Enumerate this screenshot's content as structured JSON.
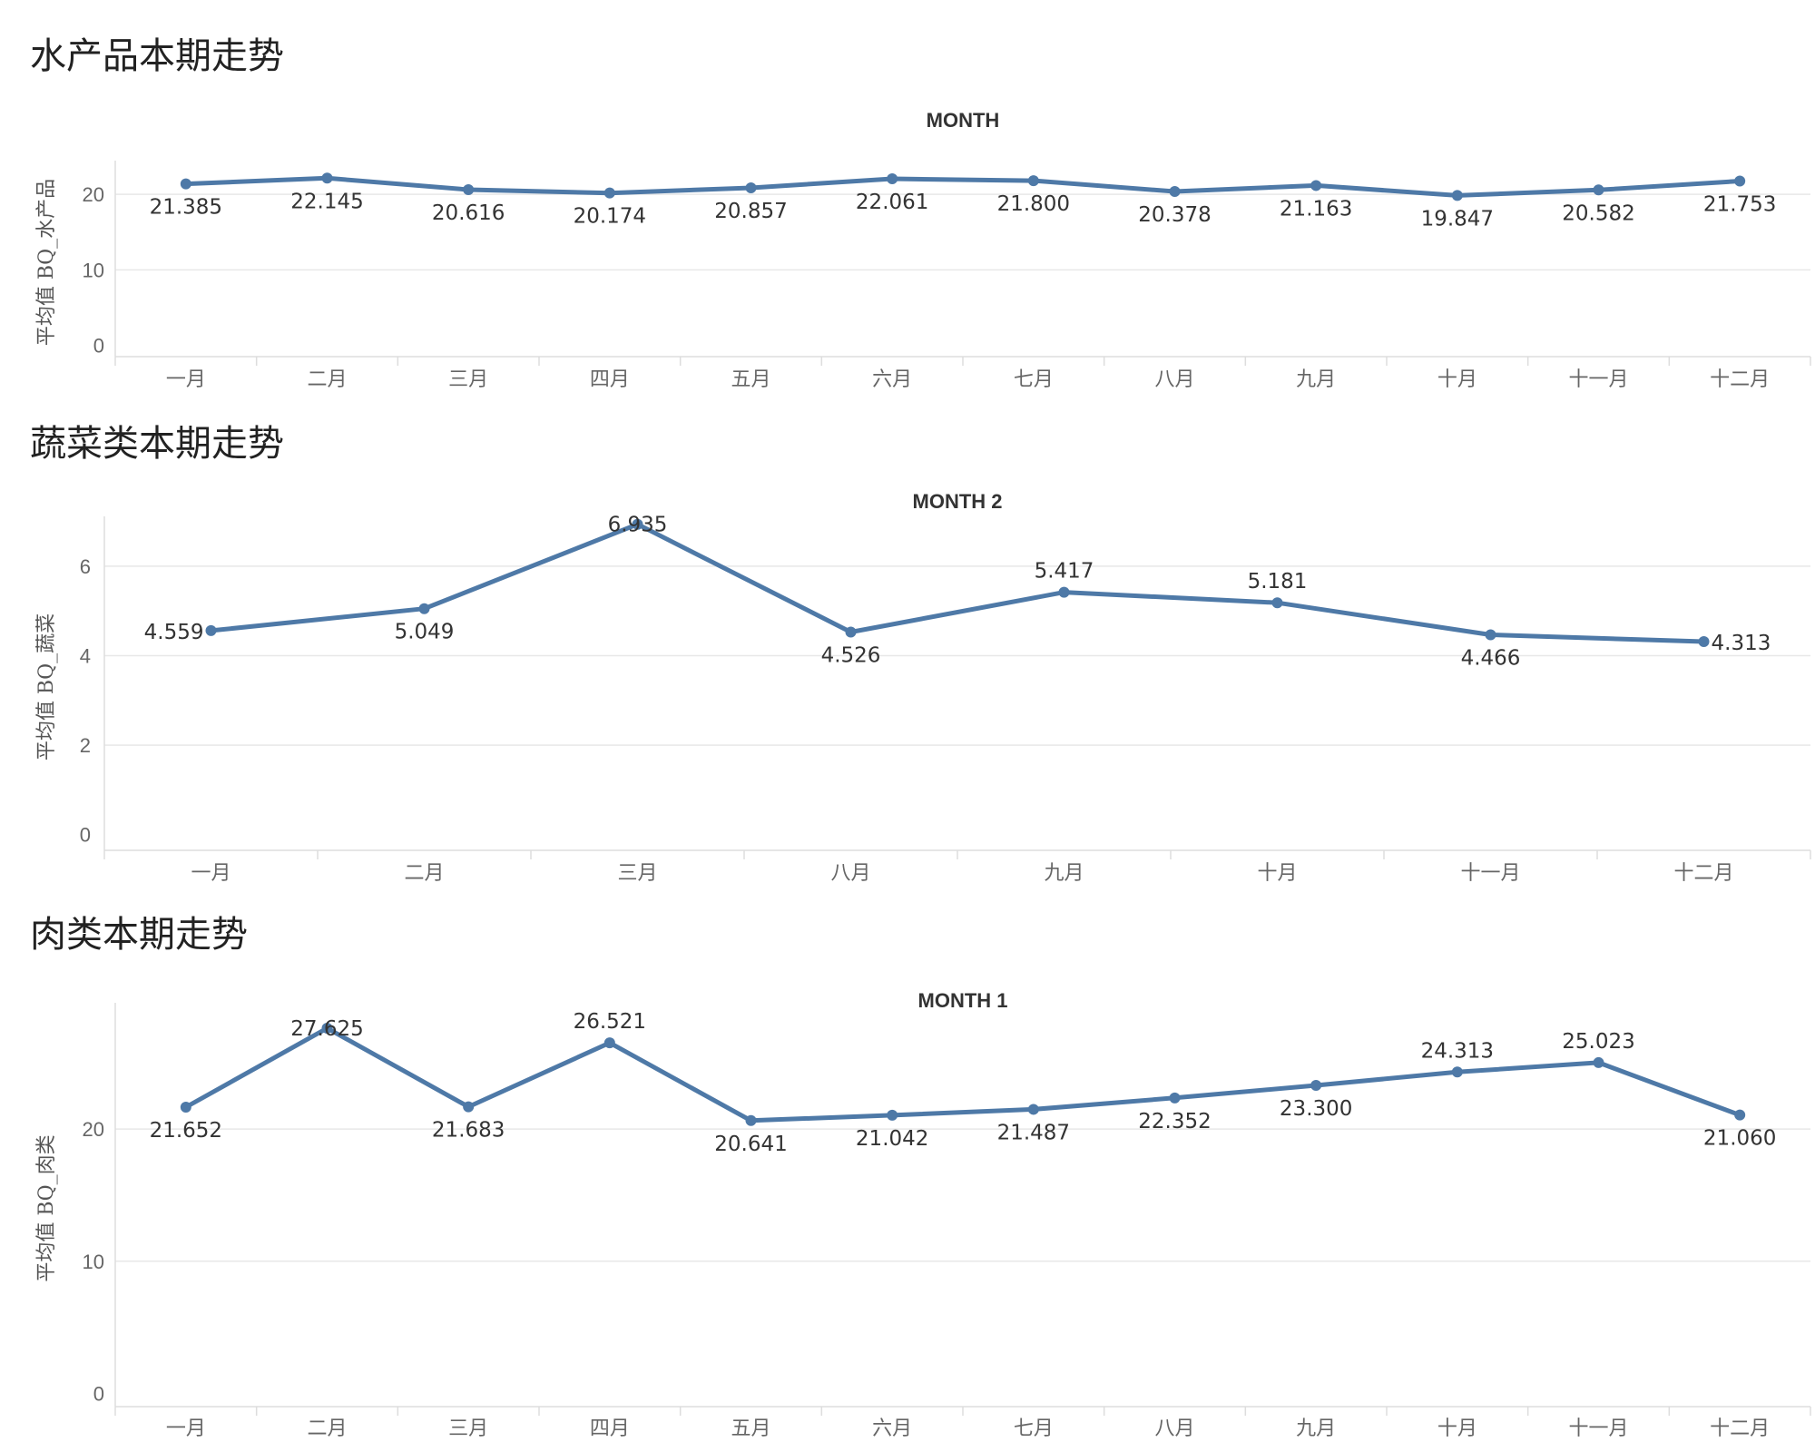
{
  "palette": {
    "line": "#4e79a7"
  },
  "chart_data": [
    {
      "type": "line",
      "panel_title": "水产品本期走势",
      "title": "MONTH",
      "xlabel": "",
      "ylabel": "平均值 BQ_水产品",
      "categories": [
        "一月",
        "二月",
        "三月",
        "四月",
        "五月",
        "六月",
        "七月",
        "八月",
        "九月",
        "十月",
        "十一月",
        "十二月"
      ],
      "values": [
        21.385,
        22.145,
        20.616,
        20.174,
        20.857,
        22.061,
        21.8,
        20.378,
        21.163,
        19.847,
        20.582,
        21.753
      ],
      "data_labels": [
        "21.385",
        "22.145",
        "20.616",
        "20.174",
        "20.857",
        "22.061",
        "21.800",
        "20.378",
        "21.163",
        "19.847",
        "20.582",
        "21.753"
      ],
      "label_pos": [
        "below",
        "below",
        "below",
        "below",
        "below",
        "below",
        "below",
        "below",
        "below",
        "below",
        "below",
        "below"
      ],
      "yticks": [
        0,
        10,
        20
      ],
      "ylim": [
        -1.5,
        23.5
      ],
      "grid": true,
      "legend": "none"
    },
    {
      "type": "line",
      "panel_title": "蔬菜类本期走势",
      "title": "MONTH 2",
      "xlabel": "",
      "ylabel": "平均值 BQ_蔬菜",
      "categories": [
        "一月",
        "二月",
        "三月",
        "八月",
        "九月",
        "十月",
        "十一月",
        "十二月"
      ],
      "values": [
        4.559,
        5.049,
        6.935,
        4.526,
        5.417,
        5.181,
        4.466,
        4.313
      ],
      "data_labels": [
        "4.559",
        "5.049",
        "6.935",
        "4.526",
        "5.417",
        "5.181",
        "4.466",
        "4.313"
      ],
      "label_pos": [
        "left",
        "below",
        "on",
        "below",
        "above",
        "above",
        "below",
        "right"
      ],
      "yticks": [
        0,
        2,
        4,
        6
      ],
      "ylim": [
        -0.35,
        6.95
      ],
      "grid": true,
      "legend": "none"
    },
    {
      "type": "line",
      "panel_title": "肉类本期走势",
      "title": "MONTH 1",
      "xlabel": "",
      "ylabel": "平均值 BQ_肉类",
      "categories": [
        "一月",
        "二月",
        "三月",
        "四月",
        "五月",
        "六月",
        "七月",
        "八月",
        "九月",
        "十月",
        "十一月",
        "十二月"
      ],
      "values": [
        21.652,
        27.625,
        21.683,
        26.521,
        20.641,
        21.042,
        21.487,
        22.352,
        23.3,
        24.313,
        25.023,
        21.06
      ],
      "data_labels": [
        "21.652",
        "27.625",
        "21.683",
        "26.521",
        "20.641",
        "21.042",
        "21.487",
        "22.352",
        "23.300",
        "24.313",
        "25.023",
        "21.060"
      ],
      "label_pos": [
        "below",
        "on",
        "below",
        "above",
        "below",
        "below",
        "below",
        "below",
        "below",
        "above",
        "above",
        "below"
      ],
      "yticks": [
        0,
        10,
        20
      ],
      "ylim": [
        -1.0,
        29.0
      ],
      "grid": true,
      "legend": "none"
    }
  ]
}
